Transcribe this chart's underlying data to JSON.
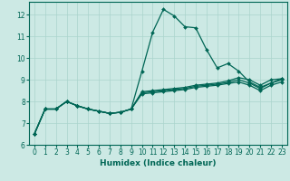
{
  "xlabel": "Humidex (Indice chaleur)",
  "bg_color": "#cce9e4",
  "grid_color": "#aad4cc",
  "line_color": "#006655",
  "xlim": [
    -0.5,
    23.5
  ],
  "ylim": [
    6.0,
    12.6
  ],
  "yticks": [
    6,
    7,
    8,
    9,
    10,
    11,
    12
  ],
  "xticks": [
    0,
    1,
    2,
    3,
    4,
    5,
    6,
    7,
    8,
    9,
    10,
    11,
    12,
    13,
    14,
    15,
    16,
    17,
    18,
    19,
    20,
    21,
    22,
    23
  ],
  "lines": [
    {
      "x": [
        0,
        1,
        2,
        3,
        4,
        5,
        6,
        7,
        8,
        9,
        10,
        11,
        12,
        13,
        14,
        15,
        16,
        17,
        18,
        19,
        20,
        21,
        22,
        23
      ],
      "y": [
        6.5,
        7.65,
        7.65,
        8.0,
        7.8,
        7.65,
        7.55,
        7.45,
        7.5,
        7.65,
        9.4,
        11.2,
        12.25,
        11.95,
        11.45,
        11.4,
        10.4,
        9.55,
        9.75,
        9.4,
        8.9,
        8.65,
        8.85,
        9.05
      ]
    },
    {
      "x": [
        0,
        1,
        2,
        3,
        4,
        5,
        6,
        7,
        8,
        9,
        10,
        11,
        12,
        13,
        14,
        15,
        16,
        17,
        18,
        19,
        20,
        21,
        22,
        23
      ],
      "y": [
        6.5,
        7.65,
        7.65,
        8.0,
        7.8,
        7.65,
        7.55,
        7.45,
        7.5,
        7.65,
        8.45,
        8.5,
        8.55,
        8.6,
        8.65,
        8.75,
        8.8,
        8.85,
        8.95,
        9.1,
        9.0,
        8.75,
        9.0,
        9.05
      ]
    },
    {
      "x": [
        0,
        1,
        2,
        3,
        4,
        5,
        6,
        7,
        8,
        9,
        10,
        11,
        12,
        13,
        14,
        15,
        16,
        17,
        18,
        19,
        20,
        21,
        22,
        23
      ],
      "y": [
        6.5,
        7.65,
        7.65,
        8.0,
        7.8,
        7.65,
        7.55,
        7.45,
        7.5,
        7.65,
        8.4,
        8.45,
        8.5,
        8.55,
        8.6,
        8.7,
        8.75,
        8.8,
        8.88,
        9.0,
        8.85,
        8.6,
        8.85,
        9.0
      ]
    },
    {
      "x": [
        0,
        1,
        2,
        3,
        4,
        5,
        6,
        7,
        8,
        9,
        10,
        11,
        12,
        13,
        14,
        15,
        16,
        17,
        18,
        19,
        20,
        21,
        22,
        23
      ],
      "y": [
        6.5,
        7.65,
        7.65,
        8.0,
        7.8,
        7.65,
        7.55,
        7.45,
        7.5,
        7.65,
        8.35,
        8.4,
        8.45,
        8.5,
        8.55,
        8.65,
        8.7,
        8.75,
        8.83,
        8.9,
        8.75,
        8.5,
        8.75,
        8.9
      ]
    }
  ],
  "marker": "D",
  "markersize": 2.0,
  "linewidth": 0.9,
  "tick_fontsize": 5.5,
  "xlabel_fontsize": 6.5
}
